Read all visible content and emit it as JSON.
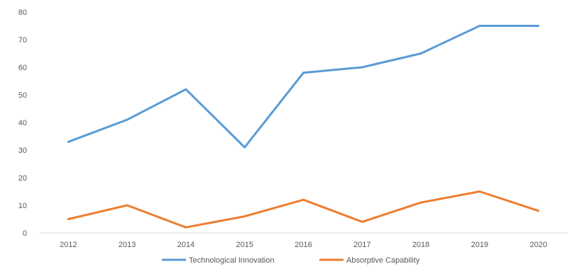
{
  "chart_data": {
    "type": "line",
    "title": "",
    "xlabel": "",
    "ylabel": "",
    "categories": [
      "2012",
      "2013",
      "2014",
      "2015",
      "2016",
      "2017",
      "2018",
      "2019",
      "2020"
    ],
    "series": [
      {
        "name": "Technological Innovation",
        "color": "#5b9bd5",
        "values": [
          33,
          41,
          52,
          31,
          58,
          60,
          65,
          75,
          75
        ]
      },
      {
        "name": "Absorptive Capability",
        "color": "#ed7d31",
        "values": [
          5,
          10,
          2,
          6,
          12,
          4,
          11,
          15,
          8
        ]
      }
    ],
    "ylim": [
      0,
      80
    ],
    "yticks": [
      0,
      10,
      20,
      30,
      40,
      50,
      60,
      70,
      80
    ],
    "grid": false,
    "legend": "bottom-center"
  }
}
